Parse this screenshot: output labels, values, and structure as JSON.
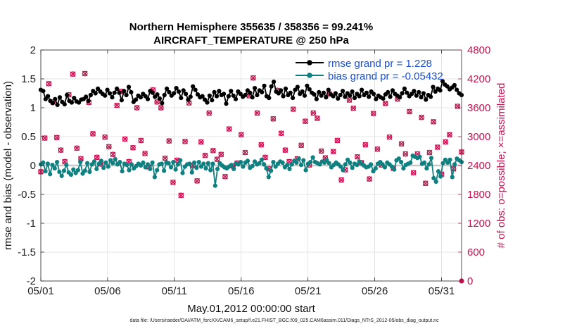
{
  "chart_data": {
    "type": "line",
    "title": [
      "Northern Hemisphere 355635 / 358356 = 99.241%",
      "AIRCRAFT_TEMPERATURE @ 250 hPa"
    ],
    "xlabel": "May.01,2012 00:00:00 start",
    "ylabel": "rmse and bias (model - observation)",
    "ylabel_right": "# of obs: o=possible; ×=assimilated",
    "footer": "data file: /Users/raeder/DAI/ATM_forcXX/CAM6_setup/f.e21.FHIST_BGC.f09_025.CAM6assim.011/Diags_NTrS_2012-05/obs_diag_output.nc",
    "xlim": [
      0,
      31.5
    ],
    "ylim": [
      -2,
      2
    ],
    "ylim_right": [
      0,
      4800
    ],
    "x_ticks": [
      0,
      5,
      10,
      15,
      20,
      25,
      30
    ],
    "x_tick_labels": [
      "05/01",
      "05/06",
      "05/11",
      "05/16",
      "05/21",
      "05/26",
      "05/31"
    ],
    "y_ticks": [
      -2,
      -1.5,
      -1,
      -0.5,
      0,
      0.5,
      1,
      1.5,
      2
    ],
    "y_tick_labels": [
      "-2",
      "-1.5",
      "-1",
      "-0.5",
      "0",
      "0.5",
      "1",
      "1.5",
      "2"
    ],
    "y_ticks_right": [
      0,
      600,
      1200,
      1800,
      2400,
      3000,
      3600,
      4200,
      4800
    ],
    "y_tick_labels_right": [
      "0",
      "600",
      "1200",
      "1800",
      "2400",
      "3000",
      "3600",
      "4200",
      "4800"
    ],
    "grid": true,
    "legend_position": "top-right",
    "series": [
      {
        "name": "rmse",
        "legend": "rmse grand pr = 1.228",
        "color": "#000000",
        "axis": "left",
        "values": [
          1.31,
          1.29,
          1.15,
          1.2,
          1.12,
          1.08,
          1.15,
          1.05,
          1.18,
          1.1,
          1.06,
          1.22,
          1.12,
          1.09,
          1.17,
          1.11,
          1.09,
          1.14,
          1.15,
          1.19,
          1.12,
          1.22,
          1.29,
          1.25,
          1.33,
          1.28,
          1.24,
          1.21,
          1.31,
          1.25,
          1.18,
          1.26,
          1.33,
          1.26,
          1.13,
          1.29,
          1.22,
          1.36,
          1.27,
          1.1,
          1.14,
          1.21,
          1.18,
          1.24,
          1.2,
          1.15,
          1.29,
          1.26,
          1.19,
          1.23,
          1.16,
          1.08,
          1.22,
          1.33,
          1.27,
          1.21,
          1.25,
          1.34,
          1.28,
          1.17,
          1.3,
          1.24,
          1.14,
          1.19,
          1.37,
          1.31,
          1.23,
          1.18,
          1.2,
          1.14,
          1.09,
          1.21,
          1.13,
          1.27,
          1.2,
          1.29,
          1.22,
          1.24,
          1.07,
          1.2,
          1.29,
          1.21,
          1.15,
          1.28,
          1.24,
          1.19,
          1.22,
          1.3,
          1.26,
          1.18,
          1.34,
          1.22,
          1.3,
          1.27,
          1.38,
          1.2,
          1.17,
          1.37,
          1.45,
          1.28,
          1.25,
          1.3,
          1.2,
          1.33,
          1.22,
          1.26,
          1.17,
          1.31,
          1.36,
          1.24,
          1.28,
          1.21,
          1.38,
          1.32,
          1.26,
          1.23,
          1.15,
          1.27,
          1.21,
          1.26,
          1.18,
          1.31,
          1.23,
          1.2,
          1.25,
          1.16,
          1.22,
          1.29,
          1.19,
          1.25,
          1.21,
          1.28,
          1.17,
          1.24,
          1.2,
          1.31,
          1.22,
          1.26,
          1.19,
          1.28,
          1.24,
          1.15,
          1.21,
          1.18,
          1.16,
          1.23,
          1.27,
          1.19,
          1.3,
          1.24,
          1.21,
          1.18,
          1.25,
          1.33,
          1.26,
          1.2,
          1.24,
          1.29,
          1.21,
          1.27,
          1.18,
          1.25,
          1.14,
          1.22,
          1.19,
          1.36,
          1.28,
          1.33,
          1.3,
          1.46,
          1.4,
          1.37,
          1.32,
          1.35,
          1.39,
          1.31,
          1.25,
          1.22
        ]
      },
      {
        "name": "bias",
        "legend": "bias grand pr = -0.05432",
        "color": "#0f8080",
        "axis": "left",
        "values": [
          0.02,
          0.05,
          -0.1,
          0.03,
          -0.15,
          0.01,
          -0.05,
          0.06,
          -0.11,
          -0.18,
          -0.09,
          0.01,
          -0.12,
          -0.16,
          -0.07,
          -0.13,
          -0.08,
          0.06,
          -0.14,
          -0.09,
          0.04,
          -0.11,
          0.02,
          0.07,
          -0.06,
          0.03,
          0.08,
          -0.04,
          0.05,
          -0.02,
          0.09,
          0.04,
          0.11,
          0.02,
          0.06,
          -0.1,
          0.03,
          0.01,
          -0.08,
          0.02,
          -0.05,
          -0.01,
          0.03,
          0.0,
          0.05,
          -0.03,
          0.02,
          -0.06,
          0.05,
          -0.2,
          -0.08,
          0.02,
          0.03,
          -0.09,
          0.05,
          0.04,
          -0.03,
          0.06,
          -0.07,
          0.02,
          0.09,
          -0.13,
          -0.02,
          0.02,
          0.03,
          -0.12,
          0.05,
          -0.04,
          0.06,
          -0.02,
          0.03,
          -0.05,
          0.04,
          -0.08,
          0.03,
          -0.35,
          -0.06,
          0.04,
          0.0,
          -0.03,
          -0.05,
          -0.02,
          0.01,
          -0.06,
          0.04,
          0.02,
          0.06,
          -0.02,
          0.05,
          0.08,
          -0.04,
          -0.01,
          0.07,
          0.02,
          0.04,
          0.1,
          0.02,
          -0.05,
          -0.2,
          -0.09,
          0.06,
          -0.02,
          0.03,
          0.07,
          0.05,
          -0.03,
          0.01,
          -0.06,
          0.02,
          0.08,
          0.05,
          0.12,
          0.01,
          0.09,
          -0.08,
          0.03,
          0.06,
          0.14,
          0.06,
          0.04,
          0.02,
          0.07,
          0.05,
          0.09,
          0.04,
          -0.03,
          0.01,
          0.05,
          0.02,
          -0.02,
          -0.08,
          0.02,
          0.1,
          0.05,
          -0.04,
          0.03,
          0.01,
          0.07,
          0.03,
          0.0,
          -0.03,
          -0.02,
          0.02,
          -0.1,
          -0.05,
          0.03,
          0.06,
          0.02,
          -0.03,
          0.05,
          0.02,
          -0.02,
          -0.07,
          0.09,
          0.12,
          0.06,
          -0.05,
          0.01,
          0.03,
          0.05,
          0.17,
          0.15,
          0.13,
          0.15,
          0.03,
          0.05,
          -0.05,
          0.02,
          0.13,
          -0.22,
          -0.28,
          -0.1,
          -0.19,
          0.04,
          0.1,
          0.05,
          0.1,
          -0.2,
          0.02,
          0.12,
          0.09,
          0.06
        ]
      }
    ],
    "obs_counts": {
      "name": "# of obs",
      "color": "#c8104f",
      "axis": "right",
      "x": [
        0.0,
        0.3,
        0.6,
        0.9,
        1.2,
        1.5,
        1.8,
        2.1,
        2.4,
        2.7,
        3.0,
        3.3,
        3.6,
        3.9,
        4.2,
        4.5,
        4.8,
        5.1,
        5.4,
        5.7,
        6.0,
        6.3,
        6.6,
        6.9,
        7.2,
        7.5,
        7.8,
        8.1,
        8.4,
        8.7,
        9.0,
        9.3,
        9.6,
        9.9,
        10.2,
        10.5,
        10.8,
        11.1,
        11.4,
        11.7,
        12.0,
        12.3,
        12.6,
        12.9,
        13.2,
        13.5,
        13.8,
        14.1,
        14.4,
        14.7,
        15.0,
        15.3,
        15.6,
        15.9,
        16.2,
        16.5,
        16.8,
        17.1,
        17.4,
        17.7,
        18.0,
        18.3,
        18.6,
        18.9,
        19.2,
        19.5,
        19.8,
        20.1,
        20.4,
        20.7,
        21.0,
        21.3,
        21.6,
        21.9,
        22.2,
        22.5,
        22.8,
        23.1,
        23.4,
        23.7,
        24.0,
        24.3,
        24.6,
        24.9,
        25.2,
        25.5,
        25.8,
        26.1,
        26.4,
        26.7,
        27.0,
        27.3,
        27.6,
        27.9,
        28.2,
        28.5,
        28.8,
        29.1,
        29.4,
        29.7,
        30.0,
        30.3,
        30.6,
        30.9,
        31.2,
        31.5
      ],
      "values": [
        2270,
        2970,
        4100,
        3720,
        2980,
        2720,
        2480,
        3870,
        4300,
        2760,
        2540,
        4310,
        3710,
        3060,
        2570,
        2430,
        2990,
        2790,
        2630,
        3650,
        3940,
        2950,
        2480,
        2770,
        3600,
        2920,
        2650,
        2370,
        3970,
        3720,
        3600,
        2550,
        2910,
        2050,
        2510,
        1780,
        2900,
        3700,
        2400,
        2080,
        2890,
        2610,
        3490,
        2710,
        2530,
        2630,
        2170,
        3160,
        2390,
        2450,
        3040,
        2670,
        3850,
        4220,
        3490,
        2830,
        2570,
        2330,
        3370,
        3960,
        3070,
        2720,
        2480,
        3570,
        2540,
        2820,
        3320,
        2410,
        3490,
        3380,
        2700,
        2560,
        3890,
        2690,
        2920,
        2100,
        2310,
        3760,
        3590,
        2580,
        2460,
        2830,
        2120,
        3480,
        2740,
        2410,
        3690,
        2990,
        2340,
        3780,
        2850,
        2640,
        3520,
        2250,
        2640,
        3400,
        2030,
        2670,
        3310,
        2780,
        2220,
        2890,
        3040,
        2330,
        3630,
        2680
      ]
    }
  }
}
